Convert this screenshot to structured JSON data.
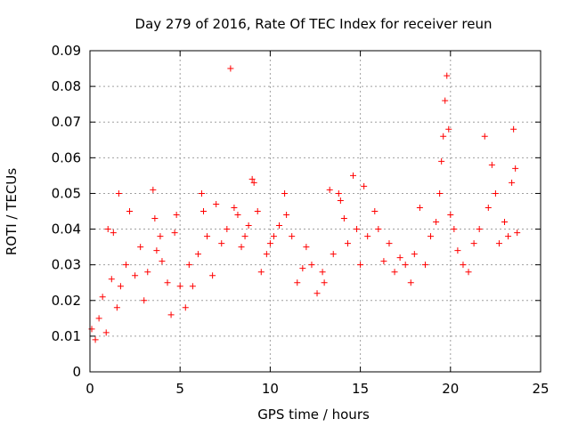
{
  "chart_data": {
    "type": "scatter",
    "title": "Day 279 of 2016, Rate Of TEC Index for receiver reun",
    "xlabel": "GPS time / hours",
    "ylabel": "ROTI / TECUs",
    "xlim": [
      0,
      25
    ],
    "ylim": [
      0,
      0.09
    ],
    "x_ticks": [
      0,
      5,
      10,
      15,
      20,
      25
    ],
    "x_tick_labels": [
      "0",
      "5",
      "10",
      "15",
      "20",
      "25"
    ],
    "y_ticks": [
      0,
      0.01,
      0.02,
      0.03,
      0.04,
      0.05,
      0.06,
      0.07,
      0.08,
      0.09
    ],
    "y_tick_labels": [
      "0",
      "0.01",
      "0.02",
      "0.03",
      "0.04",
      "0.05",
      "0.06",
      "0.07",
      "0.08",
      "0.09"
    ],
    "grid": true,
    "marker": "+",
    "marker_color": "#ff0000",
    "series": [
      {
        "name": "ROTI",
        "points": [
          [
            0.1,
            0.012
          ],
          [
            0.3,
            0.009
          ],
          [
            0.5,
            0.015
          ],
          [
            0.7,
            0.021
          ],
          [
            0.9,
            0.011
          ],
          [
            1.0,
            0.04
          ],
          [
            1.2,
            0.026
          ],
          [
            1.3,
            0.039
          ],
          [
            1.5,
            0.018
          ],
          [
            1.7,
            0.024
          ],
          [
            1.6,
            0.05
          ],
          [
            2.0,
            0.03
          ],
          [
            2.2,
            0.045
          ],
          [
            2.5,
            0.027
          ],
          [
            2.8,
            0.035
          ],
          [
            3.0,
            0.02
          ],
          [
            3.2,
            0.028
          ],
          [
            3.5,
            0.051
          ],
          [
            3.6,
            0.043
          ],
          [
            3.7,
            0.034
          ],
          [
            3.9,
            0.038
          ],
          [
            4.0,
            0.031
          ],
          [
            4.3,
            0.025
          ],
          [
            4.5,
            0.016
          ],
          [
            4.7,
            0.039
          ],
          [
            4.8,
            0.044
          ],
          [
            5.0,
            0.024
          ],
          [
            5.3,
            0.018
          ],
          [
            5.5,
            0.03
          ],
          [
            5.7,
            0.024
          ],
          [
            6.0,
            0.033
          ],
          [
            6.2,
            0.05
          ],
          [
            6.3,
            0.045
          ],
          [
            6.5,
            0.038
          ],
          [
            6.8,
            0.027
          ],
          [
            7.0,
            0.047
          ],
          [
            7.3,
            0.036
          ],
          [
            7.6,
            0.04
          ],
          [
            7.8,
            0.085
          ],
          [
            8.0,
            0.046
          ],
          [
            8.2,
            0.044
          ],
          [
            8.4,
            0.035
          ],
          [
            8.6,
            0.038
          ],
          [
            8.8,
            0.041
          ],
          [
            9.0,
            0.054
          ],
          [
            9.1,
            0.053
          ],
          [
            9.3,
            0.045
          ],
          [
            9.5,
            0.028
          ],
          [
            9.8,
            0.033
          ],
          [
            10.0,
            0.036
          ],
          [
            10.2,
            0.038
          ],
          [
            10.5,
            0.041
          ],
          [
            10.8,
            0.05
          ],
          [
            10.9,
            0.044
          ],
          [
            11.2,
            0.038
          ],
          [
            11.5,
            0.025
          ],
          [
            11.8,
            0.029
          ],
          [
            12.0,
            0.035
          ],
          [
            12.3,
            0.03
          ],
          [
            12.6,
            0.022
          ],
          [
            12.9,
            0.028
          ],
          [
            13.0,
            0.025
          ],
          [
            13.3,
            0.051
          ],
          [
            13.5,
            0.033
          ],
          [
            13.8,
            0.05
          ],
          [
            13.9,
            0.048
          ],
          [
            14.1,
            0.043
          ],
          [
            14.3,
            0.036
          ],
          [
            14.6,
            0.055
          ],
          [
            14.8,
            0.04
          ],
          [
            15.0,
            0.03
          ],
          [
            15.2,
            0.052
          ],
          [
            15.4,
            0.038
          ],
          [
            15.8,
            0.045
          ],
          [
            16.0,
            0.04
          ],
          [
            16.3,
            0.031
          ],
          [
            16.6,
            0.036
          ],
          [
            16.9,
            0.028
          ],
          [
            17.2,
            0.032
          ],
          [
            17.5,
            0.03
          ],
          [
            17.8,
            0.025
          ],
          [
            18.0,
            0.033
          ],
          [
            18.3,
            0.046
          ],
          [
            18.6,
            0.03
          ],
          [
            18.9,
            0.038
          ],
          [
            19.2,
            0.042
          ],
          [
            19.4,
            0.05
          ],
          [
            19.5,
            0.059
          ],
          [
            19.6,
            0.066
          ],
          [
            19.7,
            0.076
          ],
          [
            19.8,
            0.083
          ],
          [
            19.9,
            0.068
          ],
          [
            20.0,
            0.044
          ],
          [
            20.2,
            0.04
          ],
          [
            20.4,
            0.034
          ],
          [
            20.7,
            0.03
          ],
          [
            21.0,
            0.028
          ],
          [
            21.3,
            0.036
          ],
          [
            21.6,
            0.04
          ],
          [
            21.9,
            0.066
          ],
          [
            22.1,
            0.046
          ],
          [
            22.3,
            0.058
          ],
          [
            22.5,
            0.05
          ],
          [
            22.7,
            0.036
          ],
          [
            23.0,
            0.042
          ],
          [
            23.2,
            0.038
          ],
          [
            23.4,
            0.053
          ],
          [
            23.5,
            0.068
          ],
          [
            23.6,
            0.057
          ],
          [
            23.7,
            0.039
          ]
        ]
      }
    ]
  }
}
